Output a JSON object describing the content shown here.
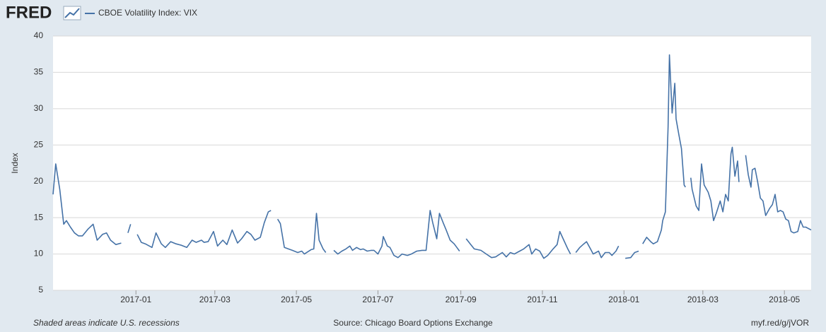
{
  "logo": "FRED",
  "chart_data": {
    "type": "line",
    "y_label": "Index",
    "note": "Shaded areas indicate U.S. recessions",
    "source": "Source: Chicago Board Options Exchange",
    "link": "myf.red/g/jVOR",
    "x": [
      -62,
      -60,
      -57,
      -54,
      -52,
      -49,
      -46,
      -43,
      -40,
      -36,
      -32,
      -29,
      -25,
      -22,
      -19,
      -15,
      -11,
      -8,
      -6,
      -4,
      -2,
      1,
      4,
      7,
      12,
      15,
      19,
      22,
      26,
      30,
      34,
      38,
      42,
      45,
      49,
      51,
      54,
      58,
      61,
      65,
      68,
      72,
      76,
      79,
      83,
      86,
      89,
      93,
      96,
      99,
      101,
      104,
      106,
      108,
      111,
      114,
      117,
      121,
      124,
      126,
      131,
      133,
      135,
      137,
      140,
      142,
      145,
      148,
      151,
      154,
      157,
      160,
      162,
      165,
      168,
      170,
      173,
      176,
      178,
      181,
      184,
      185,
      188,
      190,
      193,
      196,
      199,
      203,
      206,
      210,
      214,
      217,
      220,
      222,
      225,
      227,
      230,
      232,
      235,
      238,
      240,
      242,
      245,
      247,
      250,
      253,
      258,
      262,
      266,
      269,
      274,
      277,
      280,
      283,
      287,
      290,
      294,
      296,
      299,
      302,
      305,
      308,
      312,
      315,
      317,
      320,
      323,
      325,
      327,
      329,
      332,
      335,
      337,
      340,
      342,
      346,
      348,
      351,
      354,
      356,
      359,
      361,
      363,
      366,
      370,
      373,
      376,
      377,
      379,
      382,
      385,
      387,
      390,
      393,
      394,
      396,
      398,
      399,
      401,
      403,
      404,
      406,
      408,
      410,
      411,
      413,
      415,
      416,
      419,
      421,
      423,
      425,
      428,
      430,
      432,
      434,
      437,
      439,
      441,
      443,
      445,
      446,
      448,
      450,
      451,
      453,
      456,
      458,
      460,
      461,
      463,
      465,
      467,
      469,
      471,
      474,
      476,
      478,
      480,
      482,
      484,
      486,
      488,
      490,
      492,
      495,
      497,
      499,
      501,
      505
    ],
    "xlim": [
      -62,
      505
    ],
    "xticks": [
      {
        "value": 0,
        "label": "2017-01"
      },
      {
        "value": 59,
        "label": "2017-03"
      },
      {
        "value": 120,
        "label": "2017-05"
      },
      {
        "value": 181,
        "label": "2017-07"
      },
      {
        "value": 243,
        "label": "2017-09"
      },
      {
        "value": 304,
        "label": "2017-11"
      },
      {
        "value": 365,
        "label": "2018-01"
      },
      {
        "value": 424,
        "label": "2018-03"
      },
      {
        "value": 485,
        "label": "2018-05"
      }
    ],
    "ylim": [
      5,
      40
    ],
    "yticks": [
      5,
      10,
      15,
      20,
      25,
      30,
      35,
      40
    ],
    "grid": true,
    "series": [
      {
        "name": "CBOE Volatility Index: VIX",
        "color": "#4572a7",
        "values": [
          18.2,
          22.4,
          18.9,
          14.1,
          14.6,
          13.7,
          12.9,
          12.5,
          12.5,
          13.4,
          14.1,
          11.9,
          12.7,
          12.9,
          11.9,
          11.3,
          11.5,
          null,
          12.9,
          14.1,
          null,
          12.7,
          11.6,
          11.4,
          10.9,
          12.9,
          11.4,
          10.9,
          11.7,
          11.4,
          11.2,
          10.9,
          11.9,
          11.6,
          11.9,
          11.6,
          11.7,
          13.1,
          11.1,
          11.9,
          11.3,
          13.3,
          11.5,
          12.1,
          13.1,
          12.7,
          11.9,
          12.3,
          14.3,
          15.8,
          16.0,
          null,
          14.8,
          14.2,
          10.9,
          10.7,
          10.5,
          10.2,
          10.4,
          10.0,
          10.6,
          10.7,
          15.6,
          11.9,
          10.7,
          10.2,
          null,
          10.5,
          10.0,
          10.4,
          10.7,
          11.1,
          10.5,
          10.9,
          10.6,
          10.7,
          10.4,
          10.5,
          10.5,
          10.0,
          11.1,
          12.4,
          11.1,
          10.9,
          9.8,
          9.5,
          10.0,
          9.8,
          10.0,
          10.4,
          10.5,
          10.5,
          16.0,
          14.3,
          12.1,
          15.6,
          14.2,
          13.3,
          11.9,
          11.4,
          10.9,
          10.4,
          null,
          12.1,
          11.4,
          10.7,
          10.5,
          10.0,
          9.5,
          9.6,
          10.2,
          9.6,
          10.2,
          10.0,
          10.4,
          10.7,
          11.3,
          10.0,
          10.7,
          10.4,
          9.4,
          9.8,
          10.7,
          11.3,
          13.1,
          11.9,
          10.7,
          10.0,
          null,
          10.2,
          10.9,
          11.4,
          11.7,
          10.7,
          10.0,
          10.4,
          9.5,
          10.2,
          10.2,
          9.8,
          10.4,
          11.1,
          null,
          9.4,
          9.5,
          10.2,
          10.4,
          null,
          11.4,
          12.3,
          11.7,
          11.4,
          11.7,
          13.3,
          14.6,
          15.8,
          27.5,
          37.4,
          29.4,
          33.5,
          28.6,
          26.5,
          24.5,
          19.5,
          19.2,
          null,
          20.5,
          18.9,
          16.6,
          16.0,
          22.4,
          19.5,
          18.5,
          17.3,
          14.6,
          15.6,
          17.3,
          15.8,
          18.2,
          17.3,
          23.8,
          24.7,
          20.7,
          22.8,
          19.9,
          null,
          23.6,
          20.9,
          19.2,
          21.6,
          21.8,
          19.9,
          17.7,
          17.3,
          15.3,
          16.3,
          16.8,
          18.2,
          15.8,
          16.0,
          15.8,
          14.8,
          14.6,
          13.1,
          12.9,
          13.1,
          14.6,
          13.7,
          13.7,
          13.3
        ]
      }
    ]
  }
}
